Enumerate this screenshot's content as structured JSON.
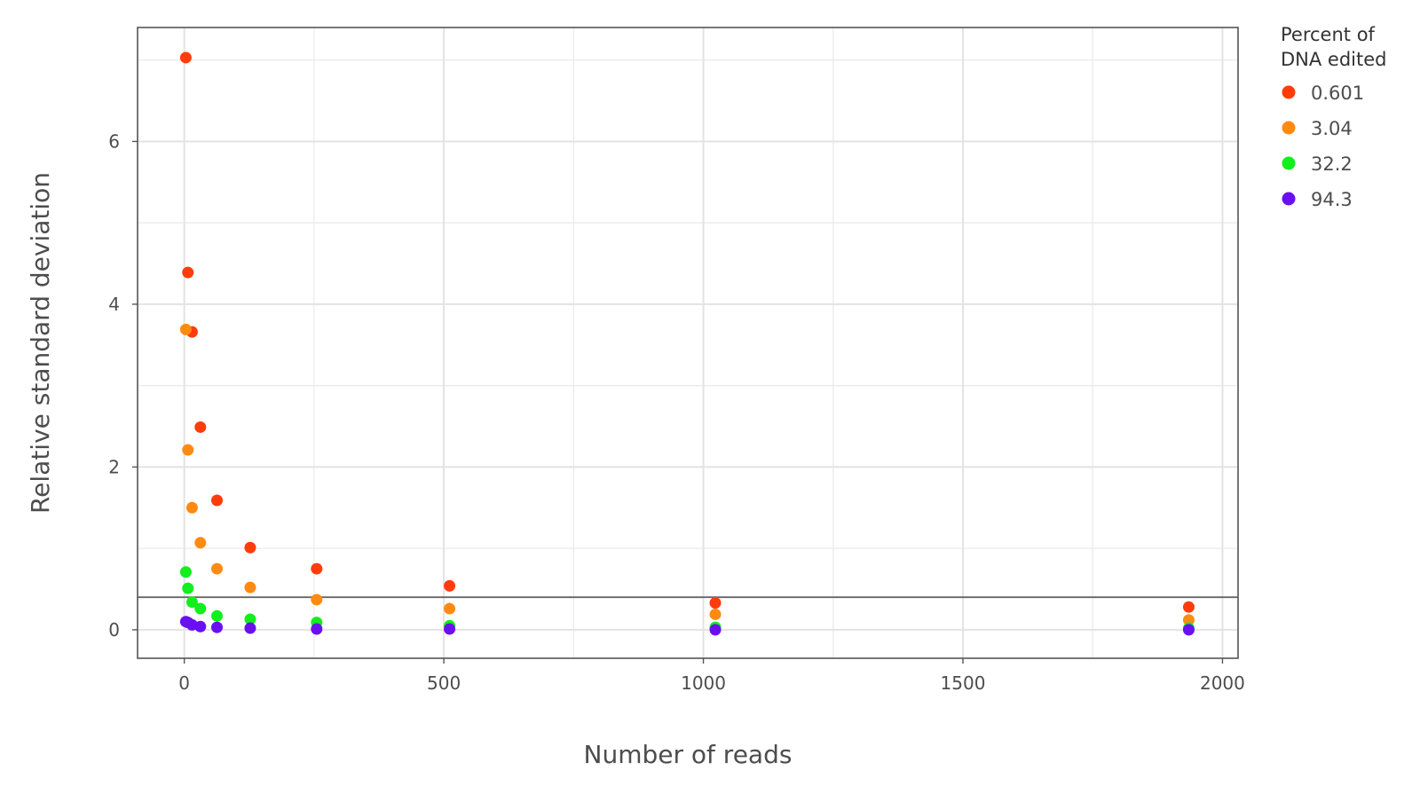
{
  "chart_data": {
    "type": "scatter",
    "title": "",
    "xlabel": "Number of reads",
    "ylabel": "Relative standard deviation",
    "xlim": [
      -90,
      2030
    ],
    "ylim": [
      -0.35,
      7.4
    ],
    "x_ticks": [
      0,
      500,
      1000,
      1500,
      2000
    ],
    "x_tick_labels": [
      "0",
      "500",
      "1000",
      "1500",
      "2000"
    ],
    "y_ticks": [
      0,
      2,
      4,
      6
    ],
    "y_tick_labels": [
      "0",
      "2",
      "4",
      "6"
    ],
    "grid": true,
    "reference_line_y": 0.4,
    "legend": {
      "title_lines": [
        "Percent of",
        "DNA edited"
      ],
      "placement": "right"
    },
    "series": [
      {
        "name": "0.601",
        "color": "#ff3c0a",
        "points": [
          [
            3,
            7.03
          ],
          [
            7,
            4.39
          ],
          [
            15,
            3.66
          ],
          [
            31,
            2.49
          ],
          [
            63,
            1.59
          ],
          [
            127,
            1.01
          ],
          [
            255,
            0.75
          ],
          [
            511,
            0.54
          ],
          [
            1023,
            0.33
          ],
          [
            1935,
            0.28
          ]
        ]
      },
      {
        "name": "3.04",
        "color": "#ff8a12",
        "points": [
          [
            3,
            3.69
          ],
          [
            7,
            2.21
          ],
          [
            15,
            1.5
          ],
          [
            31,
            1.07
          ],
          [
            63,
            0.75
          ],
          [
            127,
            0.52
          ],
          [
            255,
            0.37
          ],
          [
            511,
            0.26
          ],
          [
            1023,
            0.19
          ],
          [
            1935,
            0.12
          ]
        ]
      },
      {
        "name": "32.2",
        "color": "#12ee1e",
        "points": [
          [
            3,
            0.71
          ],
          [
            7,
            0.51
          ],
          [
            15,
            0.34
          ],
          [
            31,
            0.26
          ],
          [
            63,
            0.17
          ],
          [
            127,
            0.13
          ],
          [
            255,
            0.09
          ],
          [
            511,
            0.05
          ],
          [
            1023,
            0.03
          ],
          [
            1935,
            0.02
          ]
        ]
      },
      {
        "name": "94.3",
        "color": "#6a10f0",
        "points": [
          [
            3,
            0.1
          ],
          [
            7,
            0.09
          ],
          [
            15,
            0.06
          ],
          [
            31,
            0.04
          ],
          [
            63,
            0.03
          ],
          [
            127,
            0.02
          ],
          [
            255,
            0.01
          ],
          [
            511,
            0.01
          ],
          [
            1023,
            0.0
          ],
          [
            1935,
            0.0
          ]
        ]
      }
    ]
  }
}
